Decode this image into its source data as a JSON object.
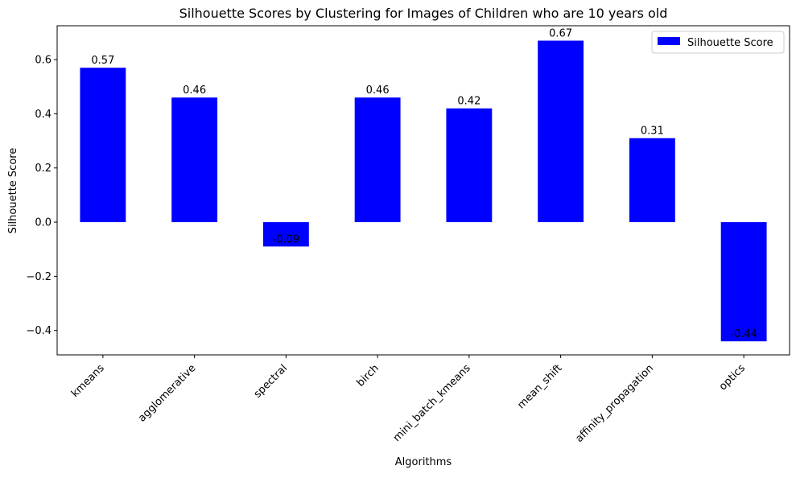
{
  "chart_data": {
    "type": "bar",
    "title": "Silhouette Scores by Clustering for Images of Children who are 10 years old",
    "xlabel": "Algorithms",
    "ylabel": "Silhouette Score",
    "categories": [
      "kmeans",
      "agglomerative",
      "spectral",
      "birch",
      "mini_batch_kmeans",
      "mean_shift",
      "affinity_propagation",
      "optics"
    ],
    "series": [
      {
        "name": "Silhouette Score",
        "values": [
          0.57,
          0.46,
          -0.09,
          0.46,
          0.42,
          0.67,
          0.31,
          -0.44
        ],
        "color": "#0000ff"
      }
    ],
    "data_labels": [
      "0.57",
      "0.46",
      "-0.09",
      "0.46",
      "0.42",
      "0.67",
      "0.31",
      "-0.44"
    ],
    "ylim": [
      -0.49,
      0.725
    ],
    "yticks": [
      -0.4,
      -0.2,
      0.0,
      0.2,
      0.4,
      0.6
    ],
    "ytick_labels": [
      "−0.4",
      "−0.2",
      "0.0",
      "0.2",
      "0.4",
      "0.6"
    ],
    "legend_position": "top-right",
    "grid": false
  }
}
